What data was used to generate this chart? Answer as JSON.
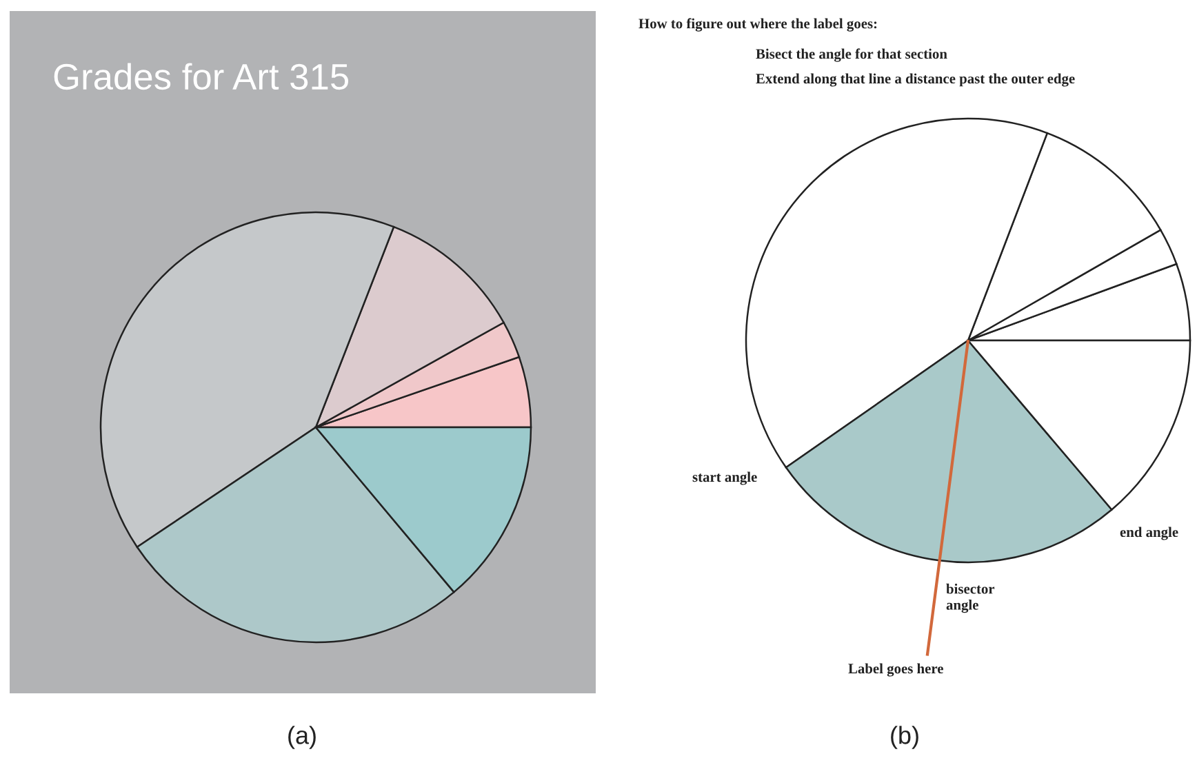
{
  "chart_data": [
    {
      "type": "pie",
      "title": "Grades for Art 315",
      "categories": [
        null,
        null,
        null,
        null,
        null,
        null
      ],
      "values": [
        5.3,
        2.8,
        11.0,
        40.3,
        26.7,
        13.9
      ],
      "colors": [
        "#f7c6c8",
        "#f0c8ca",
        "#dccbce",
        "#c5c8ca",
        "#adc8c9",
        "#9ccacc"
      ],
      "annotations": [
        "(a)"
      ]
    },
    {
      "type": "pie",
      "title": "How to figure out where the label goes:",
      "categories": [
        null,
        null,
        null,
        null,
        null,
        null
      ],
      "values": [
        5.6,
        2.7,
        10.9,
        40.5,
        26.5,
        13.8
      ],
      "colors": [
        "#ffffff",
        "#ffffff",
        "#ffffff",
        "#ffffff",
        "#a9c9c9",
        "#ffffff"
      ],
      "annotations": [
        "Bisect the angle for that section",
        "Extend along that line a distance past the outer edge",
        "start angle",
        "end angle",
        "bisector\nangle",
        "Label goes here",
        "(b)"
      ]
    }
  ]
}
